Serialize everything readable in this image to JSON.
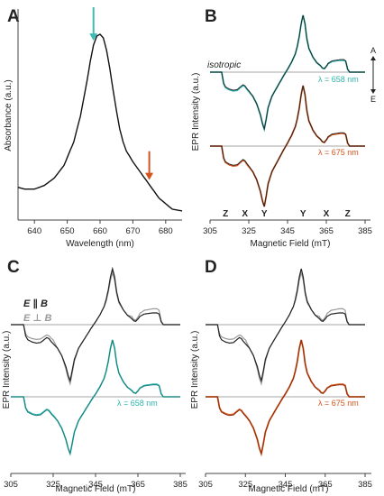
{
  "panels": {
    "A": {
      "letter": "A"
    },
    "B": {
      "letter": "B"
    },
    "C": {
      "letter": "C"
    },
    "D": {
      "letter": "D"
    }
  },
  "chart_data": [
    {
      "panel": "A",
      "type": "line",
      "xlabel": "Wavelength (nm)",
      "ylabel": "Absorbance (a.u.)",
      "xlim": [
        635,
        685
      ],
      "xticks": [
        "640",
        "650",
        "660",
        "670",
        "680"
      ],
      "series": [
        {
          "x": [
            635,
            637,
            640,
            643,
            646,
            649,
            652,
            654,
            656,
            657,
            658,
            659,
            660,
            661,
            662,
            663,
            664,
            665,
            666,
            667,
            668,
            670,
            672,
            674,
            676,
            678,
            680,
            682,
            685
          ],
          "y": [
            0.16,
            0.15,
            0.15,
            0.17,
            0.21,
            0.28,
            0.41,
            0.55,
            0.74,
            0.85,
            0.94,
            0.99,
            1.0,
            0.98,
            0.91,
            0.81,
            0.69,
            0.58,
            0.48,
            0.41,
            0.36,
            0.3,
            0.25,
            0.2,
            0.15,
            0.1,
            0.07,
            0.04,
            0.03
          ]
        }
      ],
      "annotations": [
        {
          "kind": "arrow",
          "x": 658,
          "color": "#3dbbb4"
        },
        {
          "kind": "arrow",
          "x": 675,
          "color": "#d2541d"
        }
      ]
    },
    {
      "panel": "B",
      "type": "line",
      "xlabel": "Magnetic Field (mT)",
      "ylabel": "EPR Intensity (a.u.)",
      "xlim": [
        305,
        385
      ],
      "xticks": [
        "305",
        "325",
        "345",
        "365",
        "385"
      ],
      "text_labels": {
        "isotropic": "isotropic",
        "teal": "λ = 658 nm",
        "orange": "λ = 675 nm",
        "arrow_up": "A",
        "arrow_down": "E"
      },
      "canonical_labels": [
        {
          "text": "Z",
          "x": 313
        },
        {
          "text": "X",
          "x": 323
        },
        {
          "text": "Y",
          "x": 333
        },
        {
          "text": "Y",
          "x": 353
        },
        {
          "text": "X",
          "x": 365
        },
        {
          "text": "Z",
          "x": 376
        }
      ],
      "colors": {
        "teal": "#2db2ab",
        "orange": "#d2541d",
        "simulation": "#222222"
      }
    },
    {
      "panel": "C",
      "type": "line",
      "xlabel": "Magnetic Field (mT)",
      "ylabel": "EPR Intensity (a.u.)",
      "xlim": [
        305,
        385
      ],
      "xticks": [
        "305",
        "325",
        "345",
        "365",
        "385"
      ],
      "text_labels": {
        "teal": "λ = 658 nm"
      },
      "legend": [
        {
          "symbol": "E ∥ B",
          "color": "#222222"
        },
        {
          "symbol": "E ⊥ B",
          "color": "#9a9a9a"
        }
      ],
      "colors": {
        "teal": "#2db2ab",
        "parallel": "#222222",
        "perpendicular": "#9a9a9a"
      }
    },
    {
      "panel": "D",
      "type": "line",
      "xlabel": "Magnetic Field (mT)",
      "ylabel": "EPR Intensity (a.u.)",
      "xlim": [
        305,
        385
      ],
      "xticks": [
        "305",
        "325",
        "345",
        "365",
        "385"
      ],
      "text_labels": {
        "orange": "λ = 675 nm"
      },
      "colors": {
        "orange": "#d2541d",
        "parallel": "#222222",
        "perpendicular": "#9a9a9a"
      }
    }
  ],
  "epr_shape": {
    "x": [
      305,
      308,
      310,
      311,
      312,
      313,
      315,
      317,
      319,
      321,
      322,
      323,
      324,
      325,
      327,
      329,
      331,
      332,
      333,
      334,
      335,
      337,
      339,
      341,
      343,
      345,
      347,
      349,
      350,
      351,
      352,
      353,
      354,
      355,
      356,
      358,
      360,
      362,
      363,
      364,
      365,
      366,
      368,
      370,
      372,
      374,
      375,
      376,
      377,
      378,
      380,
      385
    ],
    "y": [
      0,
      0,
      0,
      0,
      -0.2,
      -0.27,
      -0.31,
      -0.33,
      -0.32,
      -0.26,
      -0.23,
      -0.25,
      -0.3,
      -0.34,
      -0.42,
      -0.55,
      -0.75,
      -0.9,
      -1.0,
      -0.82,
      -0.62,
      -0.42,
      -0.3,
      -0.18,
      -0.06,
      0.05,
      0.17,
      0.32,
      0.45,
      0.62,
      0.85,
      1.0,
      0.85,
      0.58,
      0.42,
      0.27,
      0.17,
      0.11,
      0.07,
      0.06,
      0.1,
      0.15,
      0.19,
      0.2,
      0.21,
      0.21,
      0.19,
      0.05,
      0,
      0,
      0,
      0
    ]
  }
}
